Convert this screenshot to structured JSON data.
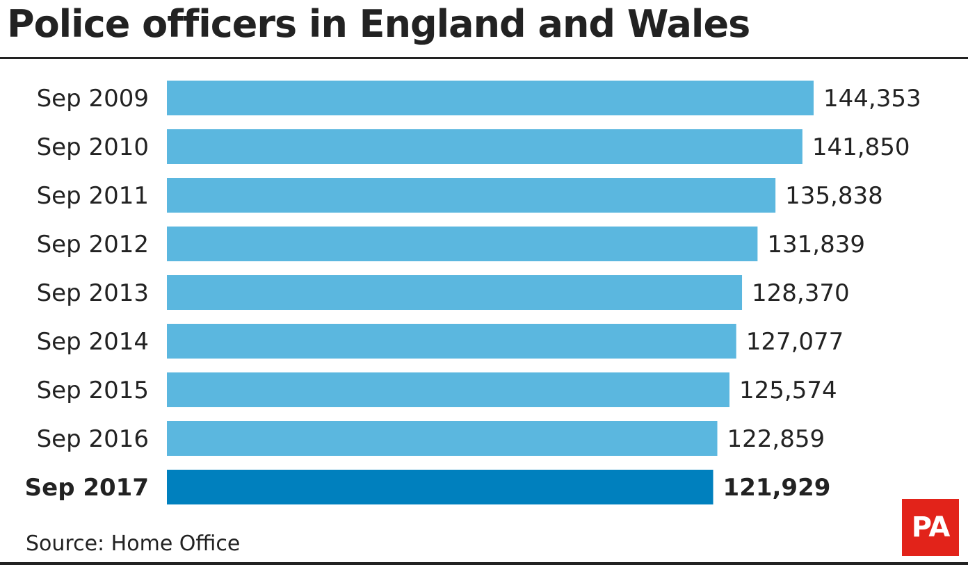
{
  "title": "Police officers in England and Wales",
  "source": "Source: Home Office",
  "logo_text": "PA",
  "colors": {
    "bar": "#5bb7df",
    "bar_highlight": "#0080be",
    "text": "#222222",
    "logo_bg": "#e2231a"
  },
  "chart_data": {
    "type": "bar",
    "orientation": "horizontal",
    "title": "Police officers in England and Wales",
    "categories": [
      "Sep 2009",
      "Sep 2010",
      "Sep 2011",
      "Sep 2012",
      "Sep 2013",
      "Sep 2014",
      "Sep 2015",
      "Sep 2016",
      "Sep 2017"
    ],
    "values": [
      144353,
      141850,
      135838,
      131839,
      128370,
      127077,
      125574,
      122859,
      121929
    ],
    "value_labels": [
      "144,353",
      "141,850",
      "135,838",
      "131,839",
      "128,370",
      "127,077",
      "125,574",
      "122,859",
      "121,929"
    ],
    "highlight_index": 8,
    "xlim": [
      0,
      144353
    ],
    "grid": false,
    "legend": "none"
  }
}
